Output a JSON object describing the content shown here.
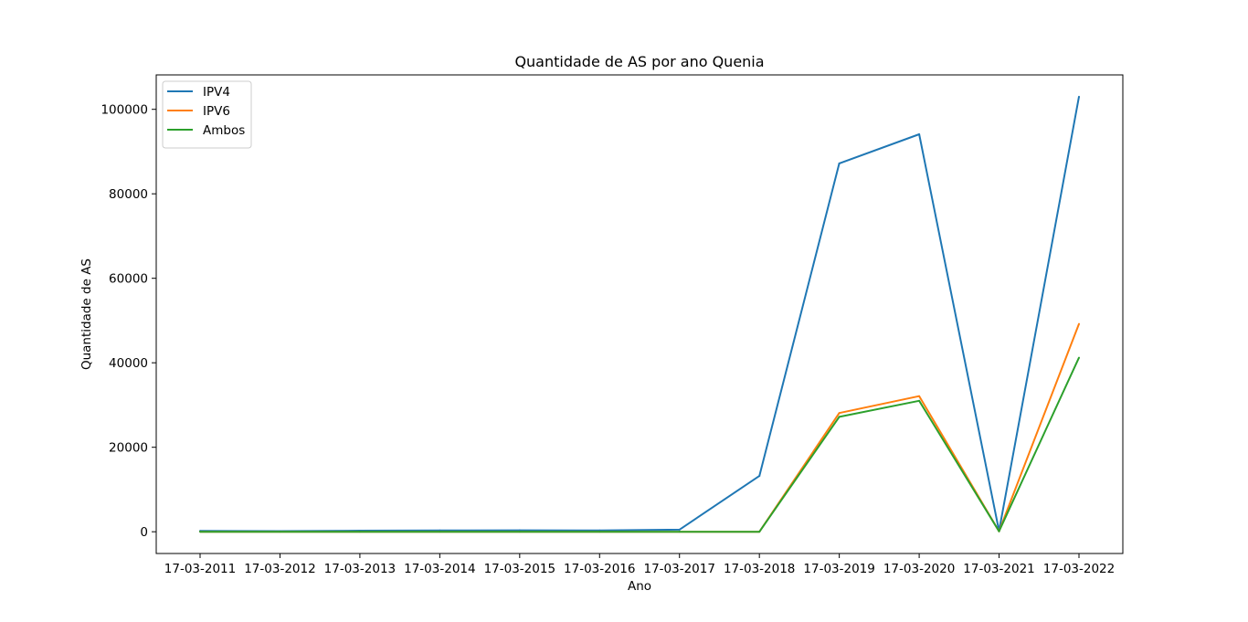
{
  "chart_data": {
    "type": "line",
    "title": "Quantidade de AS por ano Quenia",
    "xlabel": "Ano",
    "ylabel": "Quantidade de AS",
    "categories": [
      "17-03-2011",
      "17-03-2012",
      "17-03-2013",
      "17-03-2014",
      "17-03-2015",
      "17-03-2016",
      "17-03-2017",
      "17-03-2018",
      "17-03-2019",
      "17-03-2020",
      "17-03-2021",
      "17-03-2022"
    ],
    "series": [
      {
        "name": "IPV4",
        "color": "#1f77b4",
        "values": [
          200,
          150,
          250,
          300,
          350,
          300,
          500,
          13200,
          87200,
          94100,
          200,
          103000
        ]
      },
      {
        "name": "IPV6",
        "color": "#ff7f0e",
        "values": [
          0,
          0,
          0,
          0,
          0,
          0,
          0,
          0,
          28100,
          32100,
          100,
          49200
        ]
      },
      {
        "name": "Ambos",
        "color": "#2ca02c",
        "values": [
          0,
          0,
          0,
          0,
          0,
          0,
          0,
          0,
          27200,
          31000,
          100,
          41200
        ]
      }
    ],
    "yticks": [
      0,
      20000,
      40000,
      60000,
      80000,
      100000
    ],
    "ylim": [
      -5150,
      108150
    ],
    "grid": false,
    "legend_position": "top-left"
  }
}
